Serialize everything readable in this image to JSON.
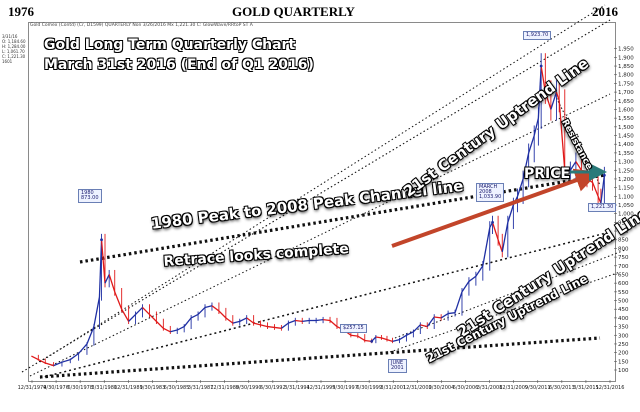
{
  "header": {
    "left_year": "1976",
    "center_title": "GOLD   QUARTERLY",
    "right_year": "2016"
  },
  "chart_info": "Gold Comex (Contd) (Cr, D1599)     QUARTERLY  Non  3/26/2016  Mx  1,221.30  C: GlowWave/RRtoP  ST A",
  "legend": [
    "3/31/16",
    "O: 1,184.60",
    "H: 1,284.00",
    "L: 1,061.70",
    "C: 1,221.30",
    "1601"
  ],
  "chart_data": {
    "type": "line",
    "title": "Gold  Long Term Quarterly Chart",
    "subtitle": "March 31st 2016 (End of Q1 2016)",
    "xlabel": "",
    "ylabel": "",
    "y_axis_side": "right",
    "ylim": [
      100,
      2000
    ],
    "grid": false,
    "y_ticks": [
      100,
      150,
      200,
      250,
      300,
      350,
      400,
      450,
      500,
      550,
      600,
      650,
      700,
      750,
      800,
      850,
      900,
      950,
      1000,
      1050,
      1100,
      1150,
      1200,
      1250,
      1300,
      1350,
      1400,
      1450,
      1500,
      1550,
      1600,
      1650,
      1700,
      1750,
      1800,
      1850,
      1900,
      1950
    ],
    "x_ticks": [
      "12/31/1974",
      "9/30/1976",
      "6/30/1978",
      "3/31/1980",
      "12/31/1981",
      "9/30/1983",
      "6/30/1985",
      "3/31/1987",
      "12/31/1988",
      "9/30/1990",
      "6/30/1992",
      "3/31/1994",
      "12/31/1995",
      "9/30/1997",
      "6/30/1999",
      "3/31/2001",
      "12/31/2002",
      "9/30/2004",
      "6/30/2006",
      "3/31/2008",
      "12/31/2009",
      "9/30/2011",
      "6/30/2013",
      "3/31/2015",
      "12/31/2016"
    ],
    "xlim": [
      1974.9,
      2016.8
    ],
    "series": [
      {
        "color_up": "#1f2fa3",
        "color_down": "#e01919",
        "x": [
          1975.0,
          1975.5,
          1976.0,
          1976.6,
          1977.2,
          1977.8,
          1978.4,
          1979.0,
          1979.5,
          1979.9,
          1980.05,
          1980.3,
          1980.6,
          1981.0,
          1981.5,
          1982.0,
          1982.5,
          1983.0,
          1983.5,
          1984.0,
          1984.5,
          1985.0,
          1985.5,
          1986.0,
          1986.5,
          1987.0,
          1987.5,
          1988.0,
          1988.5,
          1989.0,
          1989.5,
          1990.0,
          1990.5,
          1991.0,
          1991.5,
          1992.0,
          1992.5,
          1993.0,
          1993.5,
          1994.0,
          1994.5,
          1995.0,
          1995.5,
          1996.0,
          1996.5,
          1997.0,
          1997.5,
          1998.0,
          1998.5,
          1999.0,
          1999.5,
          1999.8,
          2000.2,
          2000.6,
          2001.0,
          2001.5,
          2002.0,
          2002.5,
          2003.0,
          2003.5,
          2004.0,
          2004.5,
          2005.0,
          2005.5,
          2006.0,
          2006.5,
          2007.0,
          2007.5,
          2008.0,
          2008.2,
          2008.6,
          2008.9,
          2009.3,
          2009.7,
          2010.0,
          2010.4,
          2010.8,
          2011.2,
          2011.5,
          2011.7,
          2012.0,
          2012.4,
          2012.8,
          2013.0,
          2013.4,
          2013.8,
          2014.2,
          2014.6,
          2015.0,
          2015.4,
          2015.8,
          2016.0,
          2016.25
        ],
        "values": [
          180,
          160,
          140,
          125,
          145,
          160,
          195,
          250,
          350,
          520,
          850,
          600,
          650,
          550,
          450,
          380,
          420,
          460,
          420,
          380,
          340,
          320,
          330,
          350,
          400,
          420,
          460,
          470,
          440,
          400,
          370,
          380,
          400,
          370,
          360,
          350,
          345,
          340,
          370,
          385,
          380,
          385,
          385,
          390,
          385,
          350,
          330,
          300,
          295,
          270,
          265,
          290,
          285,
          275,
          265,
          275,
          300,
          320,
          360,
          350,
          405,
          400,
          425,
          430,
          550,
          610,
          640,
          700,
          920,
          950,
          850,
          780,
          950,
          1050,
          1100,
          1200,
          1350,
          1450,
          1550,
          1850,
          1700,
          1600,
          1700,
          1650,
          1250,
          1250,
          1300,
          1250,
          1200,
          1180,
          1100,
          1060,
          1221
        ]
      }
    ],
    "annotations": {
      "peak_1980": "1980\n873.00",
      "peak_2008": "MARCH\n2008\n1,033.90",
      "peak_2011": "1,923.70",
      "low_1999": "$257.15",
      "low_2001": "JUNE\n2001",
      "current_price": "1,221.30",
      "texts": [
        "1980 Peak to 2008 Peak Channel line",
        "Retrace looks complete",
        "21st Century Uptrend Line",
        "21st Century Uptrend Line",
        "21st Century Uptrend Line",
        "PRICE",
        "Resistance"
      ]
    }
  }
}
